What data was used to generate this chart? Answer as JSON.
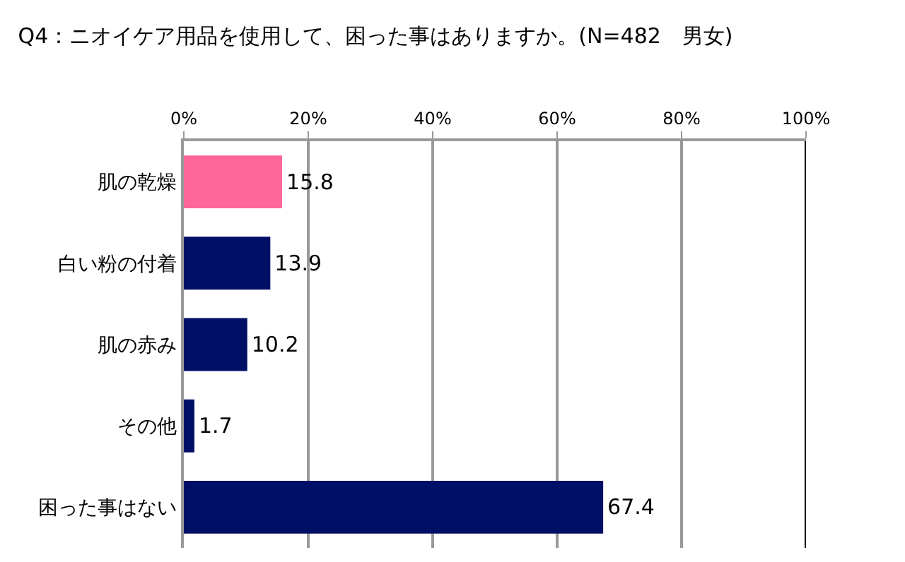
{
  "chart_data": {
    "type": "bar",
    "orientation": "horizontal",
    "title": "Q4：ニオイケア用品を使用して、困った事はありますか。(N=482　男女)",
    "categories": [
      "肌の乾燥",
      "白い粉の付着",
      "肌の赤み",
      "その他",
      "困った事はない"
    ],
    "values": [
      15.8,
      13.9,
      10.2,
      1.7,
      67.4
    ],
    "colors": [
      "#ff6699",
      "#000f66",
      "#000f66",
      "#000f66",
      "#000f66"
    ],
    "xlim": [
      0,
      100
    ],
    "xticks": [
      {
        "value": 0,
        "label": "0%"
      },
      {
        "value": 20,
        "label": "20%"
      },
      {
        "value": 40,
        "label": "40%"
      },
      {
        "value": 60,
        "label": "60%"
      },
      {
        "value": 80,
        "label": "80%"
      },
      {
        "value": 100,
        "label": "100%"
      }
    ],
    "grid": "x",
    "data_labels": true
  }
}
